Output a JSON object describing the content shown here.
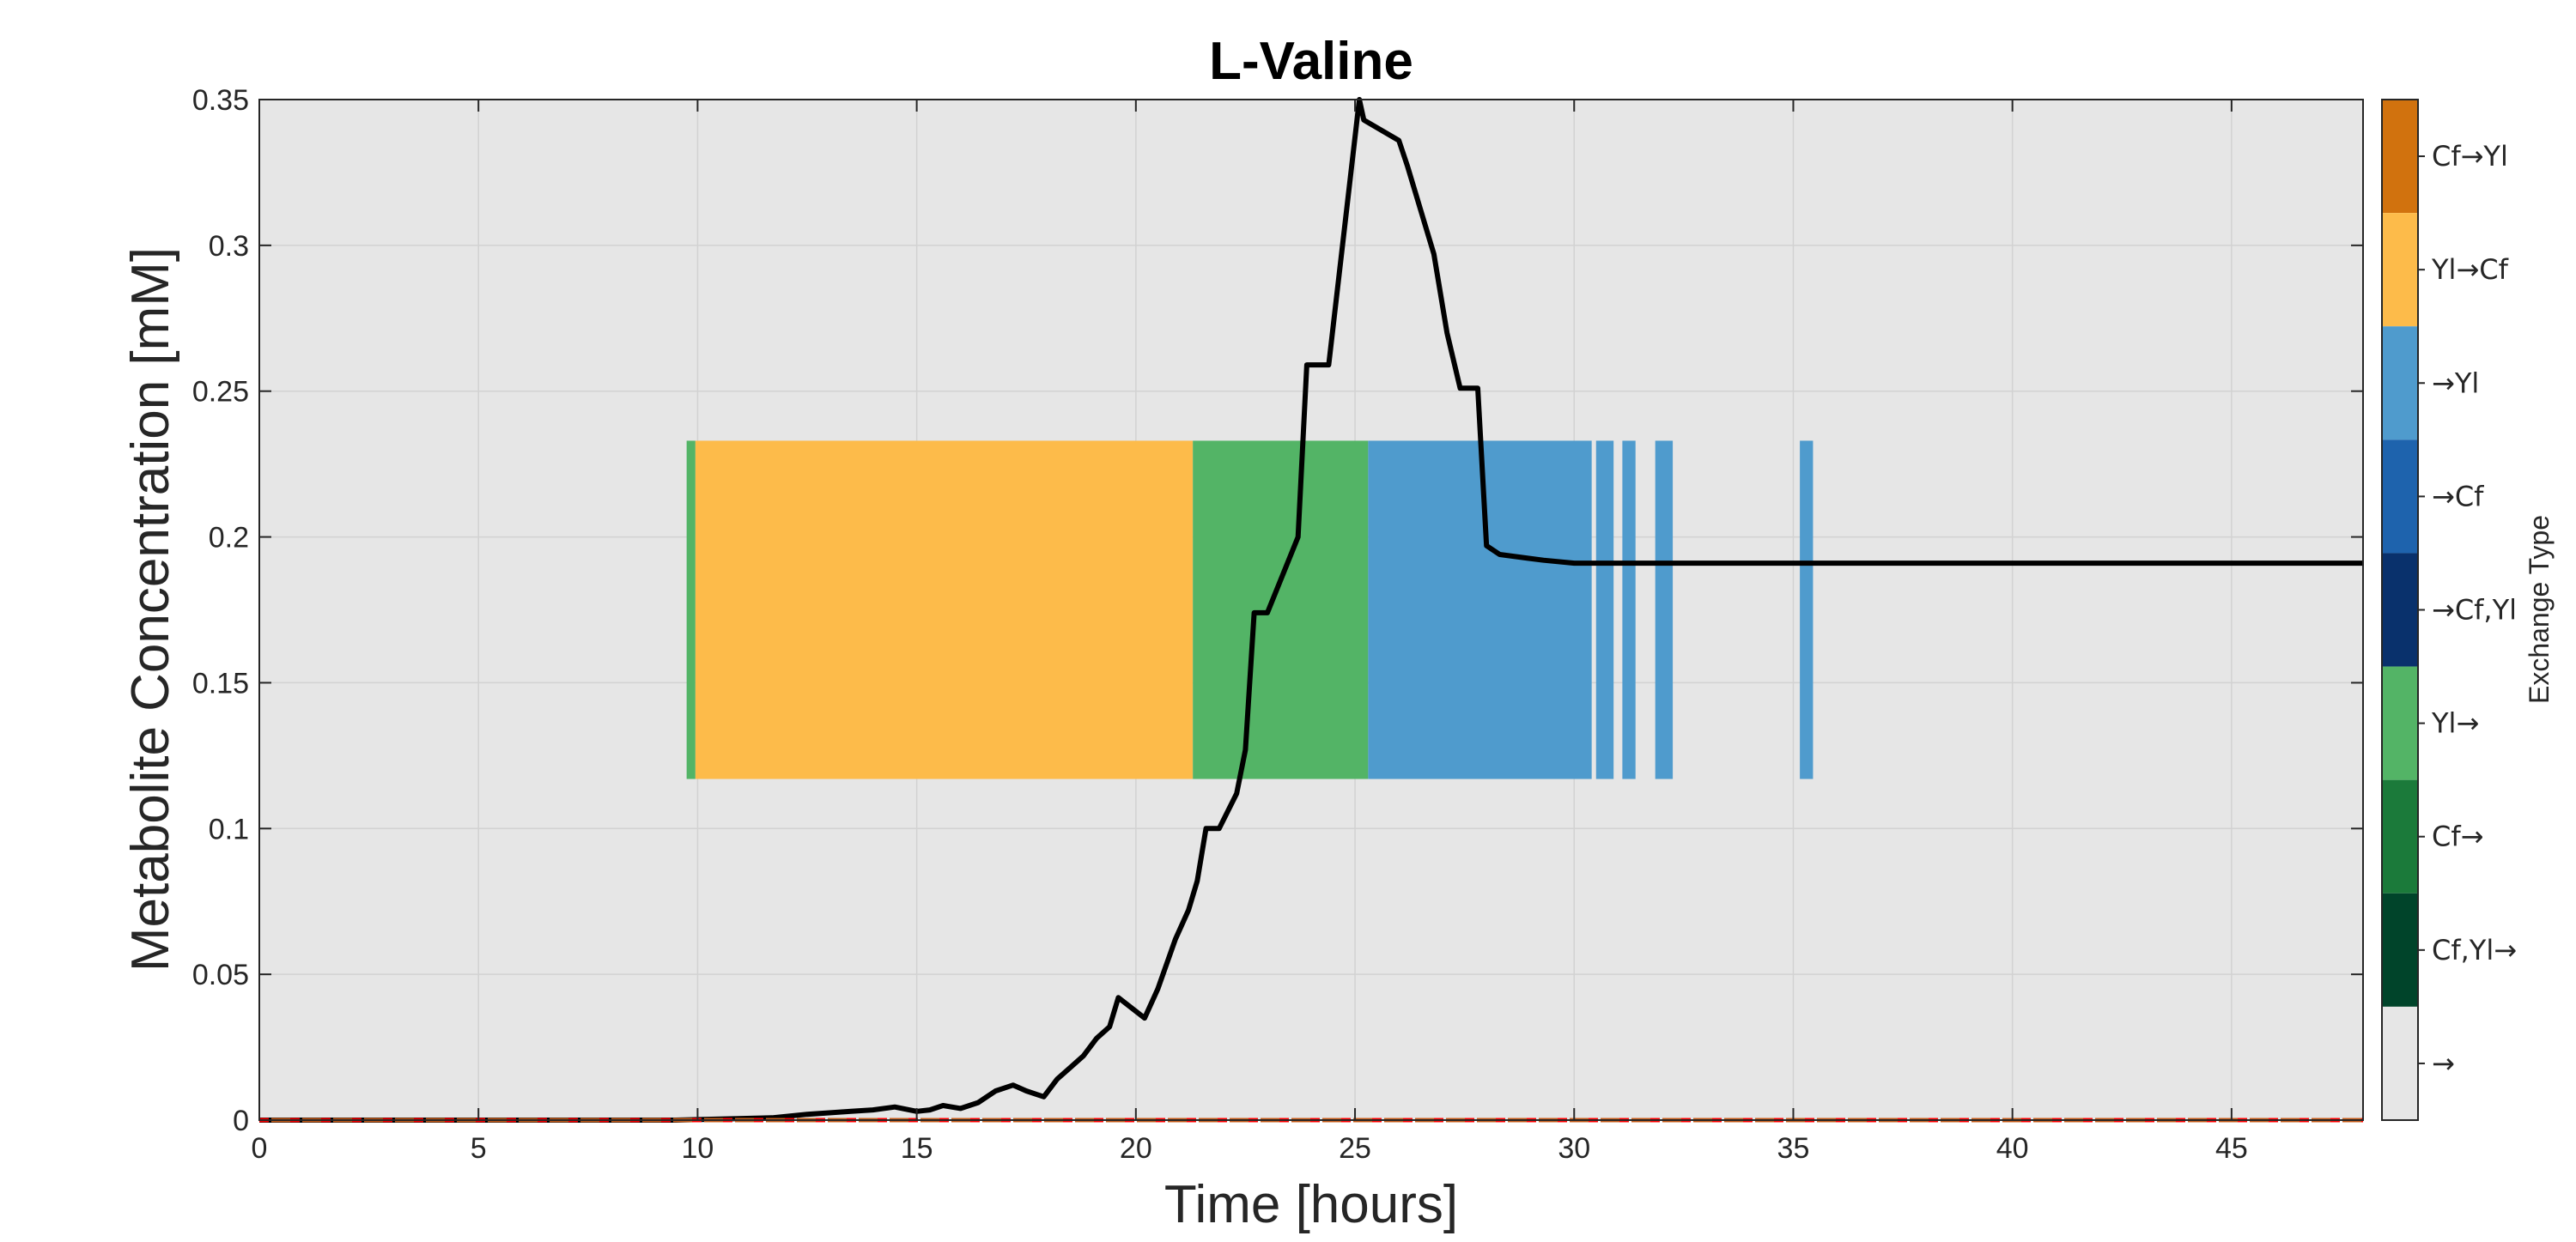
{
  "chart_data": {
    "type": "line",
    "title": "L-Valine",
    "xlabel": "Time [hours]",
    "ylabel": "Metabolite Concentration [mM]",
    "xlim": [
      0,
      48
    ],
    "ylim": [
      0,
      0.35
    ],
    "xticks": [
      0,
      5,
      10,
      15,
      20,
      25,
      30,
      35,
      40,
      45
    ],
    "xtick_labels": [
      "0",
      "5",
      "10",
      "15",
      "20",
      "25",
      "30",
      "35",
      "40",
      "45"
    ],
    "yticks": [
      0,
      0.05,
      0.1,
      0.15,
      0.2,
      0.25,
      0.3,
      0.35
    ],
    "ytick_labels": [
      "0",
      "0.05",
      "0.1",
      "0.15",
      "0.2",
      "0.25",
      "0.3",
      "0.35"
    ],
    "grid": true,
    "background_color": "#e6e6e6",
    "series": [
      {
        "style": "solid",
        "color": "#000000",
        "x": [
          0,
          9.5,
          11.7,
          12.5,
          13.5,
          14.0,
          14.5,
          15.0,
          15.3,
          15.6,
          16.0,
          16.4,
          16.8,
          17.2,
          17.5,
          17.9,
          18.2,
          18.5,
          18.8,
          19.1,
          19.4,
          19.6,
          20.2,
          20.5,
          20.9,
          21.2,
          21.4,
          21.6,
          21.9,
          22.3,
          22.5,
          22.7,
          23.0,
          23.7,
          23.9,
          24.2,
          24.4,
          25.1,
          25.2,
          26.0,
          26.2,
          26.6,
          26.8,
          27.1,
          27.4,
          27.8,
          28.0,
          28.3,
          28.8,
          29.3,
          30.0,
          31.0,
          48
        ],
        "y": [
          0,
          0,
          0.0008,
          0.002,
          0.003,
          0.0035,
          0.0045,
          0.003,
          0.0035,
          0.005,
          0.004,
          0.006,
          0.01,
          0.012,
          0.01,
          0.008,
          0.014,
          0.018,
          0.022,
          0.028,
          0.032,
          0.042,
          0.035,
          0.045,
          0.062,
          0.072,
          0.082,
          0.1,
          0.1,
          0.112,
          0.127,
          0.174,
          0.174,
          0.2,
          0.259,
          0.259,
          0.259,
          0.35,
          0.343,
          0.336,
          0.327,
          0.307,
          0.297,
          0.27,
          0.251,
          0.251,
          0.197,
          0.194,
          0.193,
          0.192,
          0.191,
          0.191,
          0.191
        ]
      },
      {
        "style": "dashed",
        "color": "#ff0000",
        "x": [
          0,
          48
        ],
        "y": [
          0,
          0
        ]
      },
      {
        "style": "dashed",
        "color": "#c65c1a",
        "x": [
          0,
          48
        ],
        "y": [
          0,
          0
        ]
      }
    ],
    "exchange_segments": {
      "y_range": [
        0.117,
        0.233
      ],
      "segments": [
        {
          "type": "Yl→",
          "x_start": 9.75,
          "x_end": 9.95
        },
        {
          "type": "Yl→Cf",
          "x_start": 9.95,
          "x_end": 21.3
        },
        {
          "type": "Yl→",
          "x_start": 21.3,
          "x_end": 25.3
        },
        {
          "type": "→Yl",
          "x_start": 25.3,
          "x_end": 30.4
        },
        {
          "type": "→Yl",
          "x_start": 30.5,
          "x_end": 30.9
        },
        {
          "type": "→Yl",
          "x_start": 31.1,
          "x_end": 31.4
        },
        {
          "type": "→Yl",
          "x_start": 31.85,
          "x_end": 32.25
        },
        {
          "type": "→Yl",
          "x_start": 35.15,
          "x_end": 35.45
        }
      ]
    },
    "colorbar": {
      "label": "Exchange Type",
      "entries": [
        {
          "label": "Cf→Yl",
          "color": "#d1720e"
        },
        {
          "label": "Yl→Cf",
          "color": "#fdbb4a"
        },
        {
          "label": "→Yl",
          "color": "#4f9bcd"
        },
        {
          "label": "→Cf",
          "color": "#1e63ad"
        },
        {
          "label": "→Cf,Yl",
          "color": "#09316c"
        },
        {
          "label": "Yl→",
          "color": "#53b466"
        },
        {
          "label": "Cf→",
          "color": "#1b7a3a"
        },
        {
          "label": "Cf,Yl→",
          "color": "#00442a"
        },
        {
          "label": "→",
          "color": "#e6e6e6"
        }
      ]
    }
  }
}
